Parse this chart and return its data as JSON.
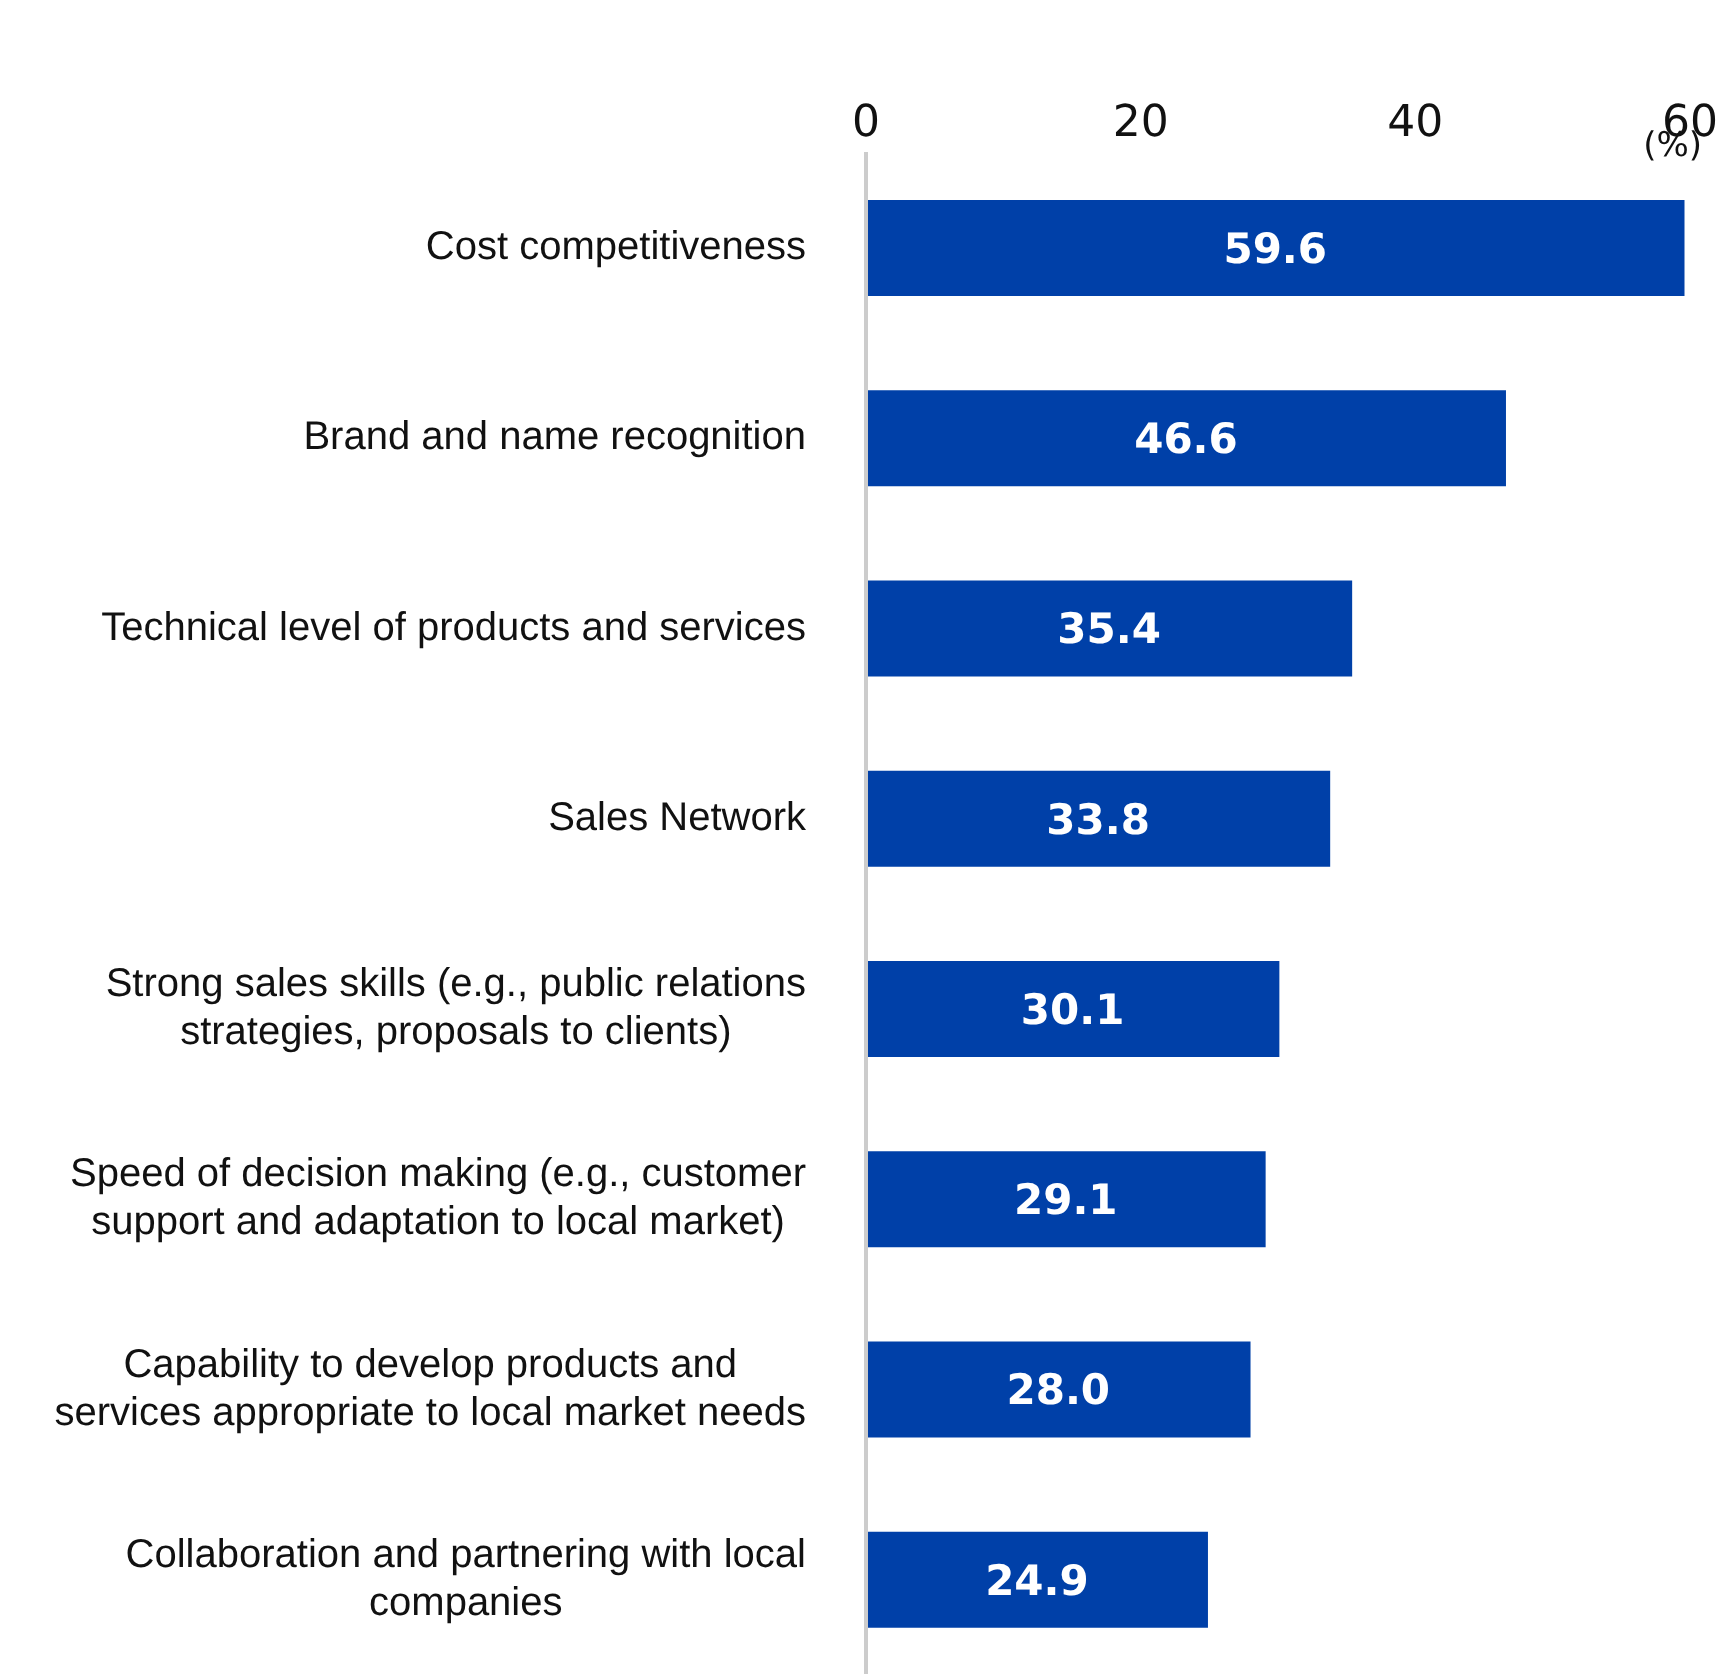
{
  "chart_data": {
    "type": "bar",
    "orientation": "horizontal",
    "xlabel": "(%)",
    "categories": [
      "Cost competitiveness",
      "Brand and name recognition",
      "Technical level of products and services",
      "Sales Network",
      "Strong sales skills (e.g., public relations strategies, proposals to clients)",
      "Speed of decision making (e.g., customer support and adaptation to local market)",
      "Capability to develop products and services appropriate to local market needs",
      "Collaboration and partnering with local companies"
    ],
    "values": [
      59.6,
      46.6,
      35.4,
      33.8,
      30.1,
      29.1,
      28.0,
      24.9
    ],
    "color": "#0040a8",
    "value_labels": [
      "59.6",
      "46.6",
      "35.4",
      "33.8",
      "30.1",
      "29.1",
      "28.0",
      "24.9"
    ],
    "xlim": [
      0,
      60
    ],
    "xticks": [
      0,
      20,
      40,
      60
    ],
    "grid": false,
    "legend": false
  }
}
